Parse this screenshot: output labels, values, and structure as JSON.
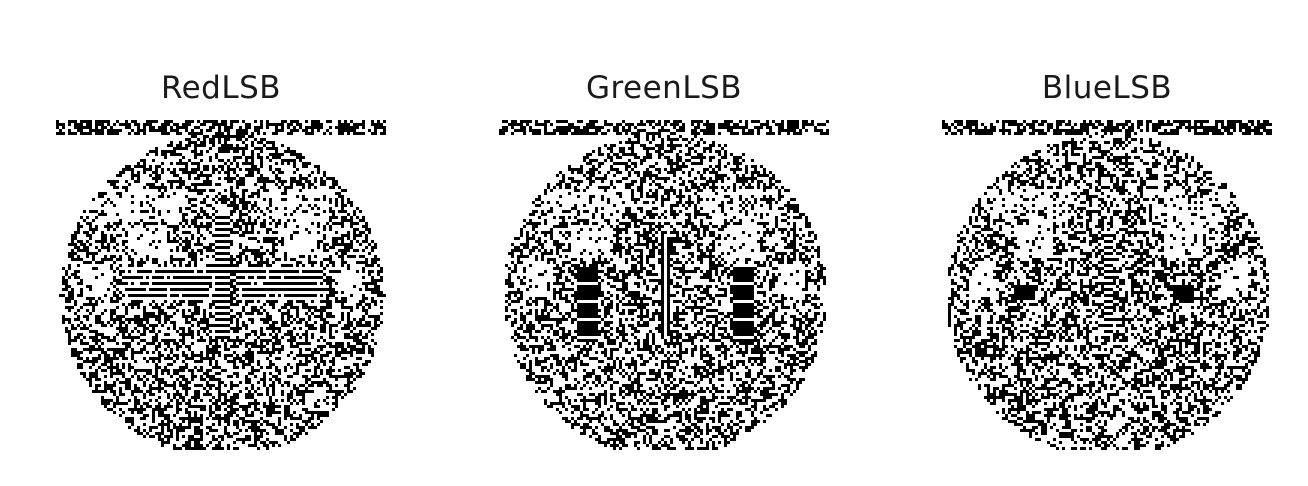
{
  "panels": [
    {
      "title": "RedLSB",
      "channel": "red",
      "dominant_color": "#000000",
      "variant": "ribs"
    },
    {
      "title": "GreenLSB",
      "channel": "green",
      "dominant_color": "#000000",
      "variant": "bars"
    },
    {
      "title": "BlueLSB",
      "channel": "blue",
      "dominant_color": "#000000",
      "variant": "cross"
    }
  ]
}
